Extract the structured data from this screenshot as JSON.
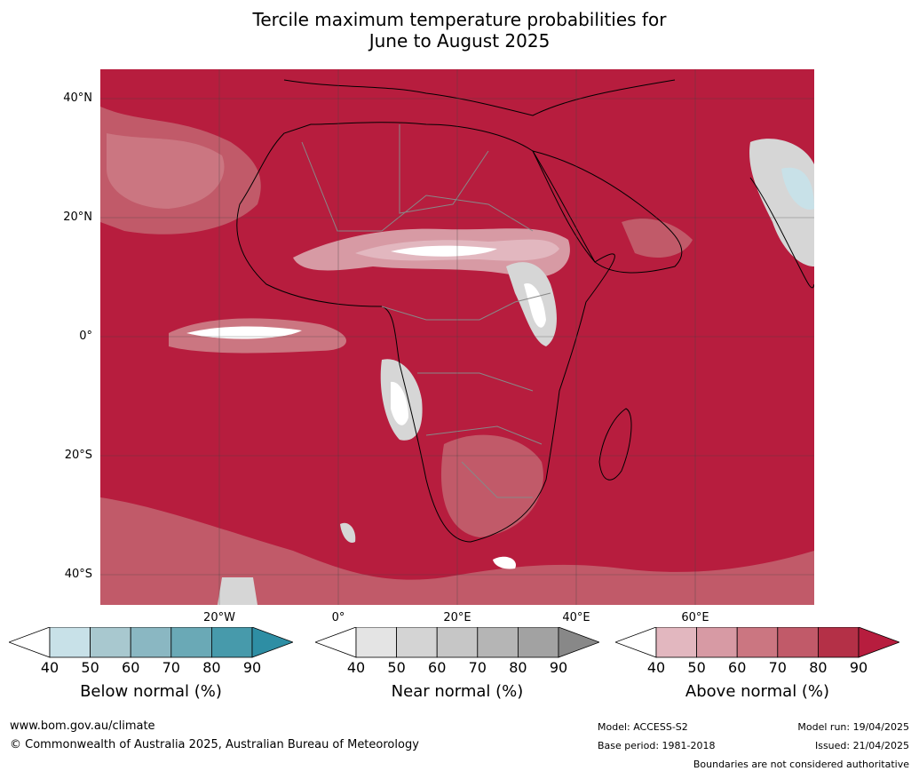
{
  "title_line1": "Tercile maximum temperature probabilities for",
  "title_line2": "June to August 2025",
  "lat_labels": [
    "40°N",
    "20°N",
    "0°",
    "20°S",
    "40°S"
  ],
  "lon_labels": [
    "20°W",
    "0°",
    "20°E",
    "40°E",
    "60°E"
  ],
  "colorbars": [
    {
      "label": "Below normal (%)",
      "ticks": [
        "40",
        "50",
        "60",
        "70",
        "80",
        "90"
      ],
      "colors": [
        "#c8e1e8",
        "#a8c8cf",
        "#8ab7c2",
        "#6aa9b6",
        "#479aab"
      ],
      "arrow_color": "#2e8ea4"
    },
    {
      "label": "Near normal (%)",
      "ticks": [
        "40",
        "50",
        "60",
        "70",
        "80",
        "90"
      ],
      "colors": [
        "#e4e4e4",
        "#d4d4d4",
        "#c6c6c6",
        "#b5b5b5",
        "#a2a2a2"
      ],
      "arrow_color": "#888888"
    },
    {
      "label": "Above normal (%)",
      "ticks": [
        "40",
        "50",
        "60",
        "70",
        "80",
        "90"
      ],
      "colors": [
        "#e2b7bf",
        "#d79aa4",
        "#cb7681",
        "#c15a69",
        "#b43047"
      ],
      "arrow_color": "#b71d3e"
    }
  ],
  "footer": {
    "url": "www.bom.gov.au/climate",
    "copyright": "© Commonwealth of Australia 2025, Australian Bureau of Meteorology",
    "model": "Model: ACCESS-S2",
    "base_period": "Base period: 1981-2018",
    "model_run": "Model run: 19/04/2025",
    "issued": "Issued: 21/04/2025",
    "disclaimer": "Boundaries are not considered authoritative"
  },
  "map_colors": {
    "dominant_above_90": "#b71d3e",
    "above_80": "#c15a69",
    "above_70": "#cb7681",
    "above_60": "#d79aa4",
    "above_50": "#e2b7bf",
    "near_normal": "#d6d6d6",
    "below_normal": "#c8e1e8",
    "white": "#ffffff"
  }
}
